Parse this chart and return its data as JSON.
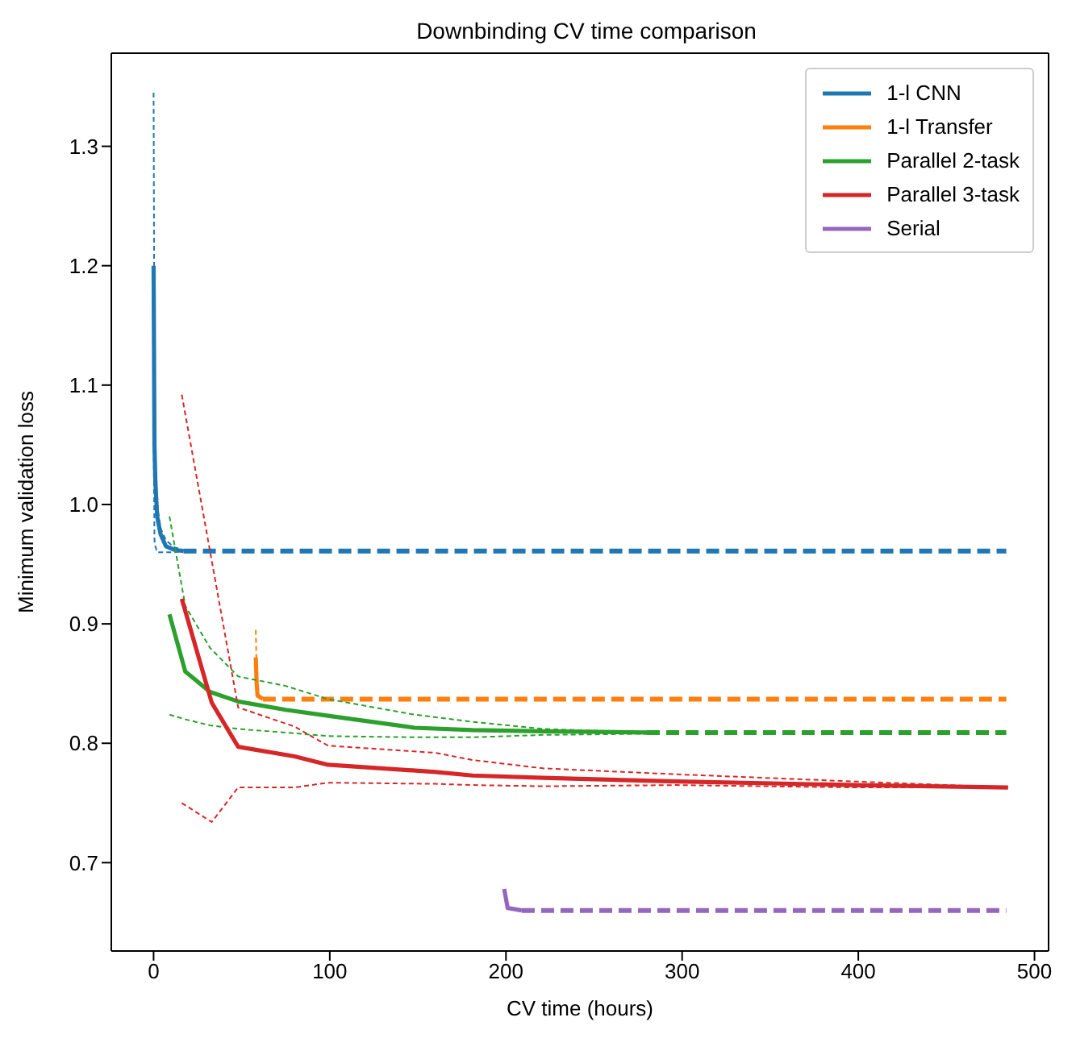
{
  "chart_data": {
    "type": "line",
    "title": "Downbinding CV time comparison",
    "xlabel": "CV time (hours)",
    "ylabel": "Minimum validation loss",
    "xlim": [
      -24,
      508
    ],
    "ylim": [
      0.626,
      1.378
    ],
    "xticks": [
      0,
      100,
      200,
      300,
      400,
      500
    ],
    "yticks": [
      0.7,
      0.8,
      0.9,
      {
        "value": 1.0,
        "label": "1.0"
      },
      1.1,
      1.2,
      1.3
    ],
    "legend": "top right",
    "marker": "none",
    "series": [
      {
        "name": "1-l CNN",
        "color": "#1f77b4",
        "line_style": "solid",
        "x": [
          0,
          0.5,
          1,
          2,
          4,
          7,
          12,
          17
        ],
        "values": [
          1.2,
          1.05,
          1.02,
          0.99,
          0.975,
          0.965,
          0.962,
          0.961
        ]
      },
      {
        "color": "#1f77b4",
        "line_style": "dotted",
        "x": [
          0,
          0.5,
          1,
          2,
          4,
          7,
          12,
          17
        ],
        "values": [
          1.345,
          1.1,
          1.03,
          1.0,
          0.98,
          0.97,
          0.964,
          0.962
        ]
      },
      {
        "color": "#1f77b4",
        "line_style": "dotted",
        "x": [
          0,
          0.5,
          1,
          2,
          4,
          7,
          12,
          17
        ],
        "values": [
          1.06,
          0.97,
          0.965,
          0.96,
          0.96,
          0.96,
          0.96,
          0.961
        ]
      },
      {
        "color": "#1f77b4",
        "line_style": "dashed",
        "x": [
          17,
          484
        ],
        "values": [
          0.961,
          0.961
        ]
      },
      {
        "name": "1-l Transfer",
        "color": "#ff7f0e",
        "line_style": "solid",
        "x": [
          58,
          58.5,
          59,
          62
        ],
        "values": [
          0.872,
          0.85,
          0.84,
          0.837
        ]
      },
      {
        "color": "#ff7f0e",
        "line_style": "dotted",
        "x": [
          58,
          58.5,
          59,
          62
        ],
        "values": [
          0.895,
          0.86,
          0.842,
          0.837
        ]
      },
      {
        "color": "#ff7f0e",
        "line_style": "dashed",
        "x": [
          62,
          484
        ],
        "values": [
          0.837,
          0.837
        ]
      },
      {
        "name": "Parallel 2-task",
        "color": "#2ca02c",
        "line_style": "solid",
        "x": [
          9,
          18,
          32,
          48,
          75,
          99,
          148,
          181,
          221,
          280
        ],
        "values": [
          0.908,
          0.86,
          0.843,
          0.835,
          0.828,
          0.823,
          0.813,
          0.811,
          0.81,
          0.809
        ]
      },
      {
        "color": "#2ca02c",
        "line_style": "dotted",
        "x": [
          9,
          18,
          32,
          48,
          75,
          99,
          148,
          181,
          221,
          280
        ],
        "values": [
          0.99,
          0.915,
          0.88,
          0.856,
          0.848,
          0.837,
          0.824,
          0.818,
          0.812,
          0.809
        ]
      },
      {
        "color": "#2ca02c",
        "line_style": "dotted",
        "x": [
          9,
          18,
          32,
          48,
          75,
          99,
          148,
          181,
          221,
          280
        ],
        "values": [
          0.824,
          0.82,
          0.815,
          0.812,
          0.809,
          0.806,
          0.805,
          0.805,
          0.807,
          0.808
        ]
      },
      {
        "color": "#2ca02c",
        "line_style": "dashed",
        "x": [
          280,
          484
        ],
        "values": [
          0.809,
          0.809
        ]
      },
      {
        "name": "Parallel 3-task",
        "color": "#d62728",
        "line_style": "solid",
        "x": [
          16,
          33,
          48,
          80,
          99,
          160,
          181,
          221,
          297,
          398,
          485
        ],
        "values": [
          0.921,
          0.834,
          0.797,
          0.789,
          0.782,
          0.776,
          0.773,
          0.771,
          0.768,
          0.765,
          0.763
        ]
      },
      {
        "color": "#d62728",
        "line_style": "dotted",
        "x": [
          16,
          33,
          48,
          80,
          99,
          160,
          181,
          221,
          297,
          398,
          485
        ],
        "values": [
          1.092,
          0.953,
          0.83,
          0.814,
          0.798,
          0.792,
          0.786,
          0.779,
          0.774,
          0.768,
          0.763
        ]
      },
      {
        "color": "#d62728",
        "line_style": "dotted",
        "x": [
          16,
          33,
          48,
          80,
          99,
          160,
          181,
          221,
          297,
          398,
          485
        ],
        "values": [
          0.75,
          0.734,
          0.763,
          0.763,
          0.767,
          0.766,
          0.765,
          0.764,
          0.765,
          0.763,
          0.763
        ]
      },
      {
        "name": "Serial",
        "color": "#9467bd",
        "line_style": "solid",
        "x": [
          199,
          201,
          209
        ],
        "values": [
          0.678,
          0.662,
          0.66
        ]
      },
      {
        "color": "#9467bd",
        "line_style": "dashed",
        "x": [
          209,
          484
        ],
        "values": [
          0.66,
          0.66
        ]
      }
    ]
  }
}
